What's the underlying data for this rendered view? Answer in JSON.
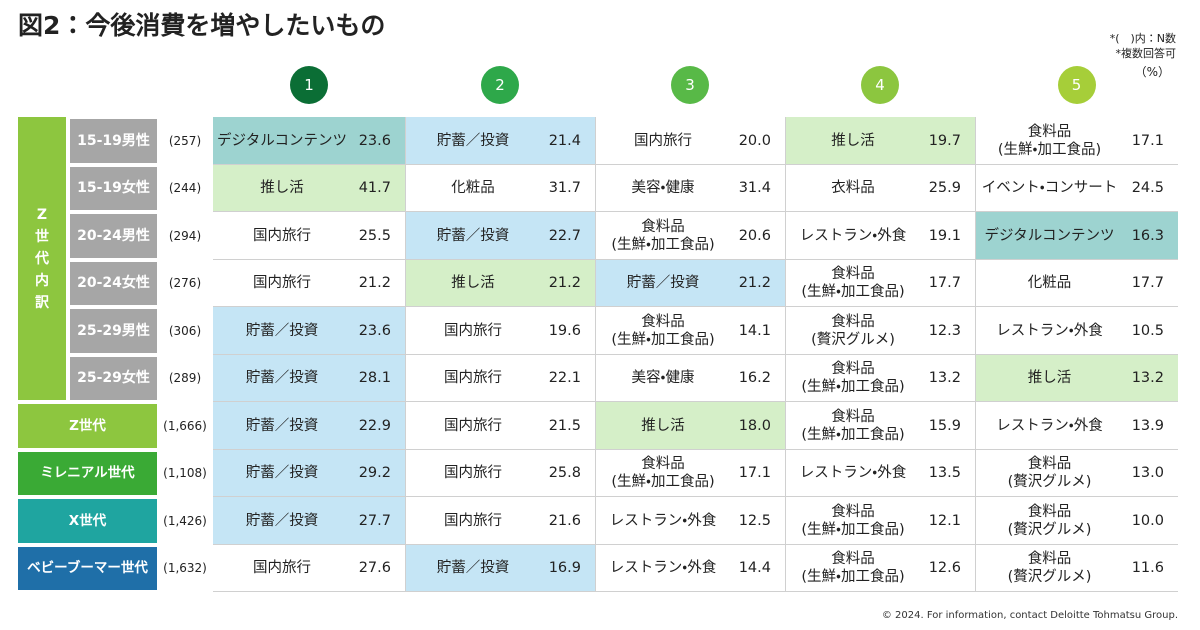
{
  "header": {
    "title": "図2：今後消費を増やしたいもの",
    "notes": [
      "*(　)内：N数",
      "*複数回答可"
    ],
    "unit": "（%）"
  },
  "table": {
    "ranks": [
      "1",
      "2",
      "3",
      "4",
      "5"
    ],
    "rank_colors": [
      "#0b6e35",
      "#2ea84a",
      "#58b947",
      "#8cc63f",
      "#a6ce39"
    ],
    "group": {
      "label": "Z\n世\n代\n内\n訳",
      "color": "#8dc63f"
    },
    "rows": [
      {
        "label": "15-19男性",
        "n": "(257)",
        "color": "#a6a6a6",
        "cells": [
          {
            "item": "デジタルコンテンツ",
            "value": "23.6",
            "fill": "#9dd3d0"
          },
          {
            "item": "貯蓄／投資",
            "value": "21.4",
            "fill": "#c5e5f5"
          },
          {
            "item": "国内旅行",
            "value": "20.0"
          },
          {
            "item": "推し活",
            "value": "19.7",
            "fill": "#d5efc8"
          },
          {
            "item": "食料品\n(生鮮・加工食品)",
            "value": "17.1"
          }
        ]
      },
      {
        "label": "15-19女性",
        "n": "(244)",
        "color": "#a6a6a6",
        "cells": [
          {
            "item": "推し活",
            "value": "41.7",
            "fill": "#d5efc8"
          },
          {
            "item": "化粧品",
            "value": "31.7"
          },
          {
            "item": "美容・健康",
            "value": "31.4"
          },
          {
            "item": "衣料品",
            "value": "25.9"
          },
          {
            "item": "イベント・コンサート",
            "value": "24.5"
          }
        ]
      },
      {
        "label": "20-24男性",
        "n": "(294)",
        "color": "#a6a6a6",
        "cells": [
          {
            "item": "国内旅行",
            "value": "25.5"
          },
          {
            "item": "貯蓄／投資",
            "value": "22.7",
            "fill": "#c5e5f5"
          },
          {
            "item": "食料品\n(生鮮・加工食品)",
            "value": "20.6"
          },
          {
            "item": "レストラン・外食",
            "value": "19.1"
          },
          {
            "item": "デジタルコンテンツ",
            "value": "16.3",
            "fill": "#9dd3d0"
          }
        ]
      },
      {
        "label": "20-24女性",
        "n": "(276)",
        "color": "#a6a6a6",
        "cells": [
          {
            "item": "国内旅行",
            "value": "21.2"
          },
          {
            "item": "推し活",
            "value": "21.2",
            "fill": "#d5efc8"
          },
          {
            "item": "貯蓄／投資",
            "value": "21.2",
            "fill": "#c5e5f5"
          },
          {
            "item": "食料品\n(生鮮・加工食品)",
            "value": "17.7"
          },
          {
            "item": "化粧品",
            "value": "17.7"
          }
        ]
      },
      {
        "label": "25-29男性",
        "n": "(306)",
        "color": "#a6a6a6",
        "cells": [
          {
            "item": "貯蓄／投資",
            "value": "23.6",
            "fill": "#c5e5f5"
          },
          {
            "item": "国内旅行",
            "value": "19.6"
          },
          {
            "item": "食料品\n(生鮮・加工食品)",
            "value": "14.1"
          },
          {
            "item": "食料品\n(贅沢グルメ)",
            "value": "12.3"
          },
          {
            "item": "レストラン・外食",
            "value": "10.5"
          }
        ]
      },
      {
        "label": "25-29女性",
        "n": "(289)",
        "color": "#a6a6a6",
        "cells": [
          {
            "item": "貯蓄／投資",
            "value": "28.1",
            "fill": "#c5e5f5"
          },
          {
            "item": "国内旅行",
            "value": "22.1"
          },
          {
            "item": "美容・健康",
            "value": "16.2"
          },
          {
            "item": "食料品\n(生鮮・加工食品)",
            "value": "13.2"
          },
          {
            "item": "推し活",
            "value": "13.2",
            "fill": "#d5efc8"
          }
        ]
      },
      {
        "label": "Z世代",
        "n": "(1,666)",
        "color": "#8dc63f",
        "cells": [
          {
            "item": "貯蓄／投資",
            "value": "22.9",
            "fill": "#c5e5f5"
          },
          {
            "item": "国内旅行",
            "value": "21.5"
          },
          {
            "item": "推し活",
            "value": "18.0",
            "fill": "#d5efc8"
          },
          {
            "item": "食料品\n(生鮮・加工食品)",
            "value": "15.9"
          },
          {
            "item": "レストラン・外食",
            "value": "13.9"
          }
        ]
      },
      {
        "label": "ミレニアル世代",
        "n": "(1,108)",
        "color": "#3aaa35",
        "cells": [
          {
            "item": "貯蓄／投資",
            "value": "29.2",
            "fill": "#c5e5f5"
          },
          {
            "item": "国内旅行",
            "value": "25.8"
          },
          {
            "item": "食料品\n(生鮮・加工食品)",
            "value": "17.1"
          },
          {
            "item": "レストラン・外食",
            "value": "13.5"
          },
          {
            "item": "食料品\n(贅沢グルメ)",
            "value": "13.0"
          }
        ]
      },
      {
        "label": "X世代",
        "n": "(1,426)",
        "color": "#1fa5a0",
        "cells": [
          {
            "item": "貯蓄／投資",
            "value": "27.7",
            "fill": "#c5e5f5"
          },
          {
            "item": "国内旅行",
            "value": "21.6"
          },
          {
            "item": "レストラン・外食",
            "value": "12.5"
          },
          {
            "item": "食料品\n(生鮮・加工食品)",
            "value": "12.1"
          },
          {
            "item": "食料品\n(贅沢グルメ)",
            "value": "10.0"
          }
        ]
      },
      {
        "label": "ベビーブーマー世代",
        "n": "(1,632)",
        "color": "#1f6fa8",
        "cells": [
          {
            "item": "国内旅行",
            "value": "27.6"
          },
          {
            "item": "貯蓄／投資",
            "value": "16.9",
            "fill": "#c5e5f5"
          },
          {
            "item": "レストラン・外食",
            "value": "14.4"
          },
          {
            "item": "食料品\n(生鮮・加工食品)",
            "value": "12.6"
          },
          {
            "item": "食料品\n(贅沢グルメ)",
            "value": "11.6"
          }
        ]
      }
    ]
  },
  "footer": "© 2024. For information, contact Deloitte Tohmatsu Group."
}
